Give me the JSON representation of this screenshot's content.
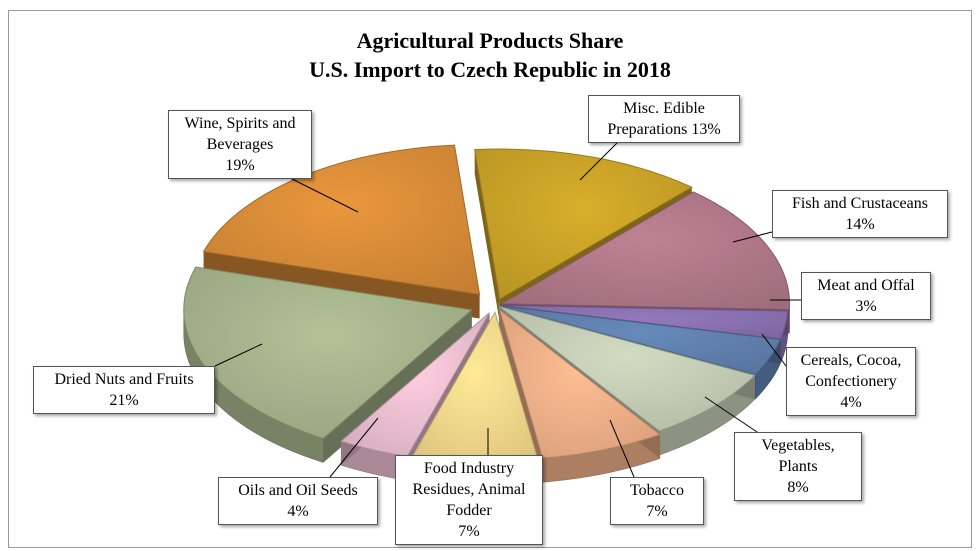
{
  "chart_data": {
    "type": "pie",
    "title": "Agricultural Products Share",
    "subtitle": "U.S. Import to Czech Republic in 2018",
    "slices": [
      {
        "label": "Misc. Edible Preparations",
        "display": [
          "Misc. Edible",
          "Preparations 13%"
        ],
        "value": 13,
        "color": "#c9a227"
      },
      {
        "label": "Fish and Crustaceans",
        "display": [
          "Fish and Crustaceans",
          "14%"
        ],
        "value": 14,
        "color": "#b0788a"
      },
      {
        "label": "Meat and Offal",
        "display": [
          "Meat and Offal",
          "3%"
        ],
        "value": 3,
        "color": "#8a70b0"
      },
      {
        "label": "Cereals, Cocoa, Confectionery",
        "display": [
          "Cereals, Cocoa,",
          "Confectionery",
          "4%"
        ],
        "value": 4,
        "color": "#5f80ad"
      },
      {
        "label": "Vegetables, Plants",
        "display": [
          "Vegetables, Plants",
          "8%"
        ],
        "value": 8,
        "color": "#c3ccb5"
      },
      {
        "label": "Tobacco",
        "display": [
          "Tobacco",
          "7%"
        ],
        "value": 7,
        "color": "#f0b088"
      },
      {
        "label": "Food Industry Residues, Animal Fodder",
        "display": [
          "Food Industry",
          "Residues, Animal",
          "Fodder",
          "7%"
        ],
        "value": 7,
        "color": "#f5d98c"
      },
      {
        "label": "Oils and Oil Seeds",
        "display": [
          "Oils and Oil Seeds",
          "4%"
        ],
        "value": 4,
        "color": "#ecbfd0"
      },
      {
        "label": "Dried Nuts and Fruits",
        "display": [
          "Dried Nuts and Fruits",
          "21%"
        ],
        "value": 21,
        "color": "#a6b48c"
      },
      {
        "label": "Wine, Spirits and Beverages",
        "display": [
          "Wine, Spirits and",
          "Beverages",
          "19%"
        ],
        "value": 19,
        "color": "#d98c38"
      }
    ]
  }
}
